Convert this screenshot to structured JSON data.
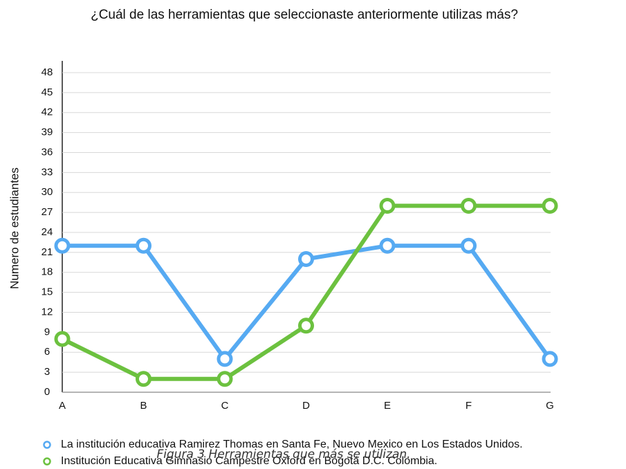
{
  "chart_data": {
    "type": "line",
    "title": "¿Cuál de las herramientas que seleccionaste anteriormente utilizas más?",
    "y_label": "Numero de estudiantes",
    "categories": [
      "A",
      "B",
      "C",
      "D",
      "E",
      "F",
      "G"
    ],
    "series": [
      {
        "name": "La institución educativa Ramirez Thomas en Santa Fe, Nuevo Mexico en Los Estados Unidos.",
        "color": "#56aaf2",
        "values": [
          22,
          22,
          5,
          20,
          22,
          22,
          5
        ]
      },
      {
        "name": "Institución Educativa Gimnasio Campestre Oxford en Bogotá D.C. Colombia.",
        "color": "#6cc13f",
        "values": [
          8,
          2,
          2,
          10,
          28,
          28,
          28
        ]
      }
    ],
    "ylim": [
      0,
      48
    ],
    "yticks": [
      0,
      3,
      6,
      9,
      12,
      15,
      18,
      21,
      24,
      27,
      30,
      33,
      36,
      39,
      42,
      45,
      48
    ],
    "grid": true,
    "caption": "Figura 3 Herramientas que más se utilizan."
  }
}
